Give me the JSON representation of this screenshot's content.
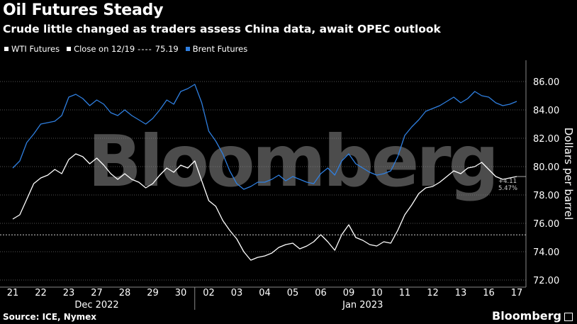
{
  "header": {
    "title": "Oil Futures Steady",
    "subtitle": "Crude little changed as traders assess China data, await OPEC outlook"
  },
  "legend": {
    "wti_label": "WTI Futures",
    "close_label": "Close on 12/19",
    "close_value": "75.19",
    "brent_label": "Brent Futures"
  },
  "colors": {
    "wti": "#ffffff",
    "brent": "#2f7fe0",
    "background": "#000000",
    "grid": "#555555",
    "close_line": "#cccccc"
  },
  "annotations": {
    "change_abs": "+4.11",
    "change_pct": "5.47%"
  },
  "watermark": "Bloomberg",
  "footer": {
    "source": "Source: ICE, Nymex",
    "brand": "Bloomberg"
  },
  "chart_data": {
    "type": "line",
    "ylabel": "Dollars per barrel",
    "ylim": [
      71.5,
      87.5
    ],
    "yticks": [
      72,
      74,
      76,
      78,
      80,
      82,
      84,
      86
    ],
    "ytick_labels": [
      "72.00",
      "74.00",
      "76.00",
      "78.00",
      "80.00",
      "82.00",
      "84.00",
      "86.00"
    ],
    "x_ticks": [
      "21",
      "22",
      "23",
      "27",
      "28",
      "29",
      "30",
      "02",
      "03",
      "04",
      "05",
      "06",
      "09",
      "10",
      "11",
      "12",
      "13",
      "16",
      "17"
    ],
    "x_groups": [
      {
        "label": "Dec 2022",
        "from": 0,
        "to": 6
      },
      {
        "label": "Jan 2023",
        "from": 7,
        "to": 18
      }
    ],
    "grid": true,
    "reference_line": {
      "label": "Close on 12/19",
      "value": 75.19
    },
    "series": [
      {
        "name": "WTI Futures",
        "x": [
          0,
          0.25,
          0.5,
          0.75,
          1,
          1.25,
          1.5,
          1.75,
          2,
          2.25,
          2.5,
          2.75,
          3,
          3.25,
          3.5,
          3.75,
          4,
          4.25,
          4.5,
          4.75,
          5,
          5.25,
          5.5,
          5.75,
          6,
          6.25,
          6.5,
          6.75,
          7,
          7.25,
          7.5,
          7.75,
          8,
          8.25,
          8.5,
          8.75,
          9,
          9.25,
          9.5,
          9.75,
          10,
          10.25,
          10.5,
          10.75,
          11,
          11.25,
          11.5,
          11.75,
          12,
          12.25,
          12.5,
          12.75,
          13,
          13.25,
          13.5,
          13.75,
          14,
          14.25,
          14.5,
          14.75,
          15,
          15.25,
          15.5,
          15.75,
          16,
          16.25,
          16.5,
          16.75,
          17,
          17.25,
          17.5,
          17.75,
          18
        ],
        "values": [
          76.3,
          76.6,
          77.7,
          78.8,
          79.2,
          79.4,
          79.8,
          79.5,
          80.5,
          80.9,
          80.7,
          80.2,
          80.6,
          80.1,
          79.5,
          79.1,
          79.5,
          79.1,
          78.9,
          78.5,
          78.8,
          79.4,
          79.9,
          79.6,
          80.1,
          79.9,
          80.4,
          79.0,
          77.6,
          77.2,
          76.2,
          75.5,
          74.9,
          74.0,
          73.4,
          73.6,
          73.7,
          73.9,
          74.3,
          74.5,
          74.6,
          74.2,
          74.4,
          74.7,
          75.2,
          74.7,
          74.1,
          75.2,
          75.9,
          75.0,
          74.8,
          74.5,
          74.4,
          74.7,
          74.6,
          75.5,
          76.6,
          77.3,
          78.1,
          78.5,
          78.6,
          78.9,
          79.3,
          79.7,
          79.5,
          79.9,
          80.0,
          80.3,
          79.8,
          79.3,
          79.1,
          79.2,
          79.3
        ]
      },
      {
        "name": "Brent Futures",
        "x": [
          0,
          0.25,
          0.5,
          0.75,
          1,
          1.25,
          1.5,
          1.75,
          2,
          2.25,
          2.5,
          2.75,
          3,
          3.25,
          3.5,
          3.75,
          4,
          4.25,
          4.5,
          4.75,
          5,
          5.25,
          5.5,
          5.75,
          6,
          6.25,
          6.5,
          6.75,
          7,
          7.25,
          7.5,
          7.75,
          8,
          8.25,
          8.5,
          8.75,
          9,
          9.25,
          9.5,
          9.75,
          10,
          10.25,
          10.5,
          10.75,
          11,
          11.25,
          11.5,
          11.75,
          12,
          12.25,
          12.5,
          12.75,
          13,
          13.25,
          13.5,
          13.75,
          14,
          14.25,
          14.5,
          14.75,
          15,
          15.25,
          15.5,
          15.75,
          16,
          16.25,
          16.5,
          16.75,
          17,
          17.25,
          17.5,
          17.75,
          18
        ],
        "values": [
          79.9,
          80.4,
          81.7,
          82.3,
          83.0,
          83.1,
          83.2,
          83.6,
          84.9,
          85.1,
          84.8,
          84.3,
          84.7,
          84.4,
          83.8,
          83.6,
          84.0,
          83.6,
          83.3,
          83.0,
          83.4,
          84.0,
          84.7,
          84.4,
          85.3,
          85.5,
          85.8,
          84.5,
          82.5,
          81.8,
          80.9,
          79.7,
          78.8,
          78.4,
          78.6,
          78.9,
          78.9,
          79.1,
          79.4,
          79.0,
          79.3,
          79.1,
          78.9,
          78.8,
          79.5,
          79.9,
          79.4,
          80.4,
          80.9,
          80.2,
          79.9,
          79.6,
          79.4,
          79.5,
          79.7,
          80.7,
          82.2,
          82.8,
          83.3,
          83.9,
          84.1,
          84.3,
          84.6,
          84.9,
          84.5,
          84.8,
          85.3,
          85.0,
          84.9,
          84.5,
          84.3,
          84.4,
          84.6
        ]
      }
    ]
  }
}
